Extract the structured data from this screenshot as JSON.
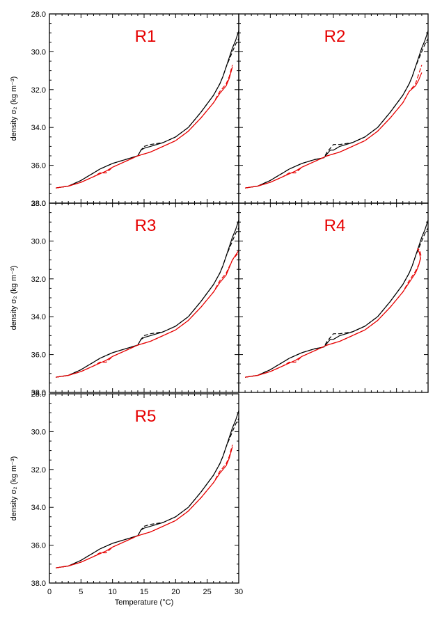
{
  "chart_data": {
    "type": "line",
    "xlabel": "Temperature (°C)",
    "ylabel": "density σ₂ (kg m⁻³)",
    "xlim": [
      0,
      30
    ],
    "ylim": [
      28.0,
      38.0
    ],
    "y_inverted": true,
    "x_ticks": [
      "0",
      "5",
      "10",
      "15",
      "20",
      "25",
      "30"
    ],
    "y_ticks": [
      "28.0",
      "30.0",
      "32.0",
      "34.0",
      "36.0",
      "38.0"
    ],
    "colors": {
      "black": "#000000",
      "red": "#e60000"
    },
    "panels": [
      {
        "title": "R1",
        "series": [
          {
            "style": "black-solid",
            "x": [
              1,
              3,
              5,
              6,
              7,
              8,
              10,
              12,
              14,
              14.5,
              15,
              16,
              18,
              20,
              22,
              24,
              26,
              27,
              27.5,
              28,
              28.5,
              29,
              29.5,
              30
            ],
            "y": [
              37.2,
              37.1,
              36.8,
              36.6,
              36.4,
              36.2,
              35.9,
              35.7,
              35.5,
              35.2,
              35.1,
              35.0,
              34.8,
              34.5,
              34.0,
              33.2,
              32.3,
              31.7,
              31.3,
              30.8,
              30.3,
              29.8,
              29.4,
              28.9
            ]
          },
          {
            "style": "black-dashed",
            "x": [
              1,
              3,
              5,
              6,
              7,
              8,
              10,
              12,
              14,
              14.5,
              15,
              16,
              18,
              20,
              22,
              24,
              26,
              27,
              27.5,
              28,
              28.5,
              29,
              29.5,
              30
            ],
            "y": [
              37.2,
              37.1,
              36.8,
              36.6,
              36.4,
              36.2,
              35.9,
              35.7,
              35.5,
              35.2,
              35.0,
              34.9,
              34.8,
              34.5,
              34.0,
              33.2,
              32.3,
              31.7,
              31.3,
              30.8,
              30.4,
              30.0,
              29.6,
              29.3
            ]
          },
          {
            "style": "red-solid",
            "x": [
              1,
              3,
              5,
              7,
              9,
              10,
              12,
              14,
              16,
              18,
              20,
              22,
              24,
              26,
              27,
              28,
              28.5,
              29
            ],
            "y": [
              37.2,
              37.1,
              36.9,
              36.6,
              36.3,
              36.1,
              35.8,
              35.5,
              35.3,
              35.0,
              34.7,
              34.2,
              33.5,
              32.7,
              32.2,
              31.8,
              31.4,
              30.8
            ]
          },
          {
            "style": "red-dashed",
            "x": [
              1,
              3,
              5,
              7,
              8,
              9,
              10,
              12,
              14,
              16,
              18,
              20,
              22,
              24,
              26,
              27,
              28,
              28.5,
              29
            ],
            "y": [
              37.2,
              37.1,
              36.9,
              36.6,
              36.4,
              36.4,
              36.1,
              35.8,
              35.5,
              35.3,
              35.0,
              34.7,
              34.2,
              33.5,
              32.7,
              32.1,
              31.7,
              31.3,
              30.7
            ]
          }
        ]
      },
      {
        "title": "R2",
        "series": [
          {
            "style": "black-solid",
            "x": [
              1,
              3,
              5,
              6,
              7,
              8,
              10,
              12,
              13.5,
              14,
              14.5,
              15,
              16,
              18,
              20,
              22,
              24,
              26,
              27,
              27.5,
              28,
              28.5,
              29,
              29.5,
              30
            ],
            "y": [
              37.2,
              37.1,
              36.8,
              36.6,
              36.4,
              36.2,
              35.9,
              35.7,
              35.6,
              35.4,
              35.2,
              35.2,
              35.0,
              34.8,
              34.5,
              34.0,
              33.2,
              32.3,
              31.7,
              31.3,
              30.8,
              30.3,
              29.8,
              29.4,
              28.9
            ]
          },
          {
            "style": "black-dashed",
            "x": [
              1,
              3,
              5,
              6,
              7,
              8,
              10,
              12,
              13.5,
              14,
              14.5,
              15,
              16,
              18,
              20,
              22,
              24,
              26,
              27,
              27.5,
              28,
              28.5,
              29,
              29.5,
              30
            ],
            "y": [
              37.2,
              37.1,
              36.8,
              36.6,
              36.4,
              36.2,
              35.9,
              35.7,
              35.6,
              35.3,
              35.1,
              34.9,
              34.9,
              34.8,
              34.5,
              34.0,
              33.2,
              32.3,
              31.7,
              31.3,
              30.8,
              30.4,
              30.0,
              29.6,
              29.3
            ]
          },
          {
            "style": "red-solid",
            "x": [
              1,
              3,
              5,
              7,
              9,
              10,
              12,
              14,
              16,
              18,
              20,
              22,
              24,
              26,
              27,
              28,
              28.5,
              29
            ],
            "y": [
              37.2,
              37.1,
              36.9,
              36.6,
              36.3,
              36.1,
              35.8,
              35.5,
              35.3,
              35.0,
              34.7,
              34.2,
              33.5,
              32.7,
              32.1,
              31.8,
              31.5,
              31.1
            ]
          },
          {
            "style": "red-dashed",
            "x": [
              1,
              3,
              5,
              7,
              8,
              9,
              10,
              12,
              14,
              16,
              18,
              20,
              22,
              24,
              26,
              27,
              28,
              28.5,
              29
            ],
            "y": [
              37.2,
              37.1,
              36.9,
              36.6,
              36.4,
              36.4,
              36.1,
              35.8,
              35.5,
              35.3,
              35.0,
              34.7,
              34.2,
              33.5,
              32.7,
              32.1,
              31.7,
              31.2,
              30.7
            ]
          }
        ]
      },
      {
        "title": "R3",
        "series": [
          {
            "style": "black-solid",
            "x": [
              1,
              3,
              5,
              6,
              7,
              8,
              10,
              12,
              14,
              14.5,
              15,
              16,
              18,
              20,
              22,
              24,
              26,
              27,
              27.5,
              28,
              28.5,
              29,
              29.5,
              30
            ],
            "y": [
              37.2,
              37.1,
              36.8,
              36.6,
              36.4,
              36.2,
              35.9,
              35.7,
              35.5,
              35.2,
              35.1,
              35.0,
              34.8,
              34.5,
              34.0,
              33.2,
              32.3,
              31.7,
              31.3,
              30.8,
              30.3,
              29.8,
              29.4,
              28.9
            ]
          },
          {
            "style": "black-dashed",
            "x": [
              1,
              3,
              5,
              6,
              7,
              8,
              10,
              12,
              14,
              14.5,
              15,
              16,
              18,
              20,
              22,
              24,
              26,
              27,
              27.5,
              28,
              28.5,
              29,
              29.5,
              30
            ],
            "y": [
              37.2,
              37.1,
              36.8,
              36.6,
              36.4,
              36.2,
              35.9,
              35.7,
              35.5,
              35.2,
              35.0,
              34.9,
              34.8,
              34.5,
              34.0,
              33.2,
              32.3,
              31.7,
              31.3,
              30.8,
              30.4,
              30.0,
              29.6,
              29.3
            ]
          },
          {
            "style": "red-solid",
            "x": [
              1,
              3,
              5,
              7,
              9,
              10,
              12,
              14,
              16,
              18,
              20,
              22,
              24,
              26,
              27,
              28,
              29,
              30
            ],
            "y": [
              37.2,
              37.1,
              36.9,
              36.6,
              36.3,
              36.1,
              35.8,
              35.5,
              35.3,
              35.0,
              34.7,
              34.2,
              33.5,
              32.7,
              32.2,
              31.8,
              31.0,
              30.5
            ]
          },
          {
            "style": "red-dashed",
            "x": [
              1,
              3,
              5,
              7,
              8,
              9,
              10,
              12,
              14,
              16,
              18,
              20,
              22,
              24,
              26,
              27,
              28,
              29,
              30
            ],
            "y": [
              37.2,
              37.1,
              36.9,
              36.6,
              36.4,
              36.4,
              36.1,
              35.8,
              35.5,
              35.3,
              35.0,
              34.7,
              34.2,
              33.5,
              32.7,
              32.1,
              31.7,
              31.0,
              30.6
            ]
          }
        ]
      },
      {
        "title": "R4",
        "series": [
          {
            "style": "black-solid",
            "x": [
              1,
              3,
              5,
              6,
              7,
              8,
              10,
              12,
              13.5,
              14,
              14.5,
              15,
              16,
              18,
              20,
              22,
              24,
              26,
              27,
              27.5,
              28,
              28.5,
              29,
              29.5,
              30
            ],
            "y": [
              37.2,
              37.1,
              36.8,
              36.6,
              36.4,
              36.2,
              35.9,
              35.7,
              35.6,
              35.4,
              35.2,
              35.2,
              35.0,
              34.8,
              34.5,
              34.0,
              33.2,
              32.3,
              31.7,
              31.3,
              30.8,
              30.3,
              29.8,
              29.4,
              28.9
            ]
          },
          {
            "style": "black-dashed",
            "x": [
              1,
              3,
              5,
              6,
              7,
              8,
              10,
              12,
              13.5,
              14,
              14.5,
              15,
              16,
              18,
              20,
              22,
              24,
              26,
              27,
              27.5,
              28,
              28.5,
              29,
              29.5,
              30
            ],
            "y": [
              37.2,
              37.1,
              36.8,
              36.6,
              36.4,
              36.2,
              35.9,
              35.7,
              35.6,
              35.3,
              35.1,
              34.9,
              34.9,
              34.8,
              34.5,
              34.0,
              33.2,
              32.3,
              31.7,
              31.3,
              30.8,
              30.4,
              30.0,
              29.6,
              29.3
            ]
          },
          {
            "style": "red-solid",
            "x": [
              1,
              3,
              5,
              7,
              9,
              10,
              12,
              14,
              16,
              18,
              20,
              22,
              24,
              26,
              27,
              28,
              28.5,
              28.8,
              28.6,
              28.3
            ],
            "y": [
              37.2,
              37.1,
              36.9,
              36.6,
              36.3,
              36.1,
              35.8,
              35.5,
              35.3,
              35.0,
              34.7,
              34.2,
              33.5,
              32.7,
              32.2,
              31.7,
              31.3,
              30.9,
              30.6,
              30.4
            ]
          },
          {
            "style": "red-dashed",
            "x": [
              1,
              3,
              5,
              7,
              8,
              9,
              10,
              12,
              14,
              16,
              18,
              20,
              22,
              24,
              26,
              27,
              28,
              28.6,
              28.9,
              28.7,
              28.4
            ],
            "y": [
              37.2,
              37.1,
              36.9,
              36.6,
              36.4,
              36.4,
              36.1,
              35.8,
              35.5,
              35.3,
              35.0,
              34.7,
              34.2,
              33.5,
              32.7,
              32.1,
              31.6,
              31.2,
              30.8,
              30.5,
              30.4
            ]
          }
        ]
      },
      {
        "title": "R5",
        "series": [
          {
            "style": "black-solid",
            "x": [
              1,
              3,
              5,
              6,
              7,
              8,
              10,
              12,
              14,
              14.5,
              15,
              16,
              18,
              20,
              22,
              24,
              26,
              27,
              27.5,
              28,
              28.5,
              29,
              29.5,
              30
            ],
            "y": [
              37.2,
              37.1,
              36.8,
              36.6,
              36.4,
              36.2,
              35.9,
              35.7,
              35.5,
              35.2,
              35.1,
              35.0,
              34.8,
              34.5,
              34.0,
              33.2,
              32.3,
              31.7,
              31.3,
              30.8,
              30.3,
              29.8,
              29.4,
              28.9
            ]
          },
          {
            "style": "black-dashed",
            "x": [
              1,
              3,
              5,
              6,
              7,
              8,
              10,
              12,
              14,
              14.5,
              15,
              16,
              18,
              20,
              22,
              24,
              26,
              27,
              27.5,
              28,
              28.5,
              29,
              29.5,
              30
            ],
            "y": [
              37.2,
              37.1,
              36.8,
              36.6,
              36.4,
              36.2,
              35.9,
              35.7,
              35.5,
              35.2,
              35.0,
              34.9,
              34.8,
              34.5,
              34.0,
              33.2,
              32.3,
              31.7,
              31.3,
              30.8,
              30.4,
              30.0,
              29.6,
              29.3
            ]
          },
          {
            "style": "red-solid",
            "x": [
              1,
              3,
              5,
              7,
              9,
              10,
              12,
              14,
              16,
              18,
              20,
              22,
              24,
              26,
              27,
              28,
              28.5,
              29
            ],
            "y": [
              37.2,
              37.1,
              36.9,
              36.6,
              36.3,
              36.1,
              35.8,
              35.5,
              35.3,
              35.0,
              34.7,
              34.2,
              33.5,
              32.7,
              32.2,
              31.8,
              31.4,
              30.8
            ]
          },
          {
            "style": "red-dashed",
            "x": [
              1,
              3,
              5,
              7,
              8,
              9,
              10,
              12,
              14,
              16,
              18,
              20,
              22,
              24,
              26,
              27,
              28,
              28.5,
              29
            ],
            "y": [
              37.2,
              37.1,
              36.9,
              36.6,
              36.4,
              36.4,
              36.1,
              35.8,
              35.5,
              35.3,
              35.0,
              34.7,
              34.2,
              33.5,
              32.7,
              32.1,
              31.7,
              31.3,
              30.7
            ]
          }
        ]
      }
    ]
  }
}
